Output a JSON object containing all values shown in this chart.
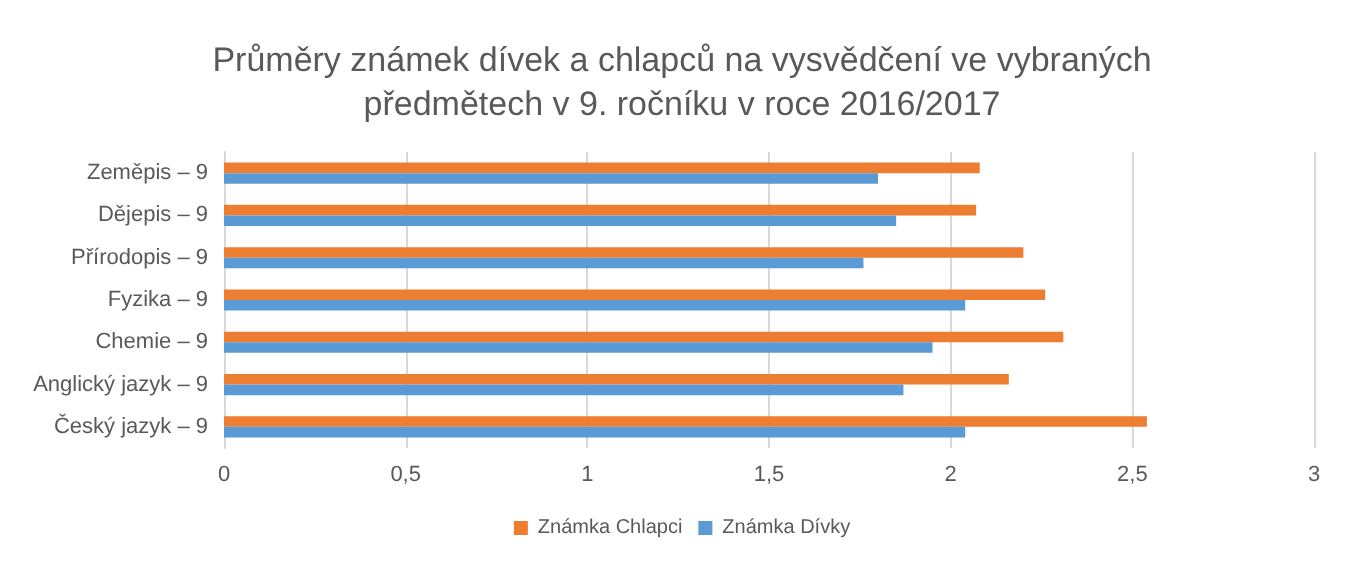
{
  "chart_data": {
    "type": "bar",
    "orientation": "horizontal",
    "title": "Průměry známek dívek a chlapců na vysvědčení ve vybraných\npředmětech v 9. ročníku v roce 2016/2017",
    "categories": [
      "Zeměpis – 9",
      "Dějepis – 9",
      "Přírodopis – 9",
      "Fyzika – 9",
      "Chemie – 9",
      "Anglický jazyk – 9",
      "Český jazyk – 9"
    ],
    "series": [
      {
        "name": "Známka Chlapci",
        "color": "#ed7d31",
        "values": [
          2.08,
          2.07,
          2.2,
          2.26,
          2.31,
          2.16,
          2.54
        ]
      },
      {
        "name": "Známka Dívky",
        "color": "#5b9bd5",
        "values": [
          1.8,
          1.85,
          1.76,
          2.04,
          1.95,
          1.87,
          2.04
        ]
      }
    ],
    "xlim": [
      0,
      3
    ],
    "xticks": [
      0,
      {
        "value": 0.5,
        "label": "0,5"
      },
      1,
      {
        "value": 1.5,
        "label": "1,5"
      },
      2,
      {
        "value": 2.5,
        "label": "2,5"
      },
      3
    ],
    "grid": "x",
    "legend": "bottom"
  }
}
